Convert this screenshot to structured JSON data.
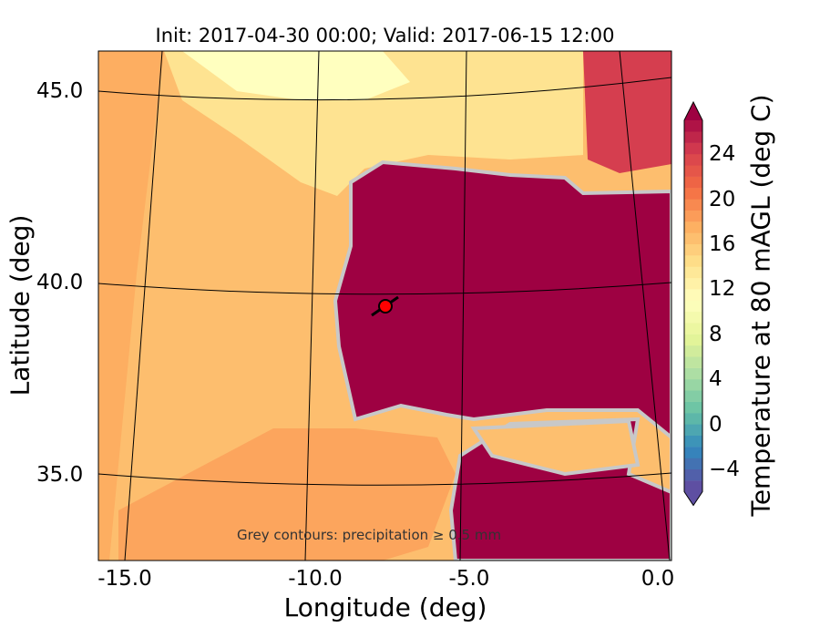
{
  "title": "Init: 2017-04-30 00:00; Valid: 2017-06-15 12:00",
  "xlabel": "Longitude (deg)",
  "ylabel": "Latitude (deg)",
  "xticks": [
    "-15.0",
    "-10.0",
    "-5.0",
    "0.0"
  ],
  "yticks": [
    "45.0",
    "40.0",
    "35.0"
  ],
  "note": "Grey contours: precipitation ≥ 0.5 mm",
  "colorbar": {
    "label": "Temperature at 80 mAGL (deg C)",
    "ticks": [
      "24",
      "20",
      "16",
      "12",
      "8",
      "4",
      "0",
      "−4"
    ],
    "min": -6,
    "max": 27,
    "extend": "both",
    "colormap": "Spectral_r"
  },
  "marker": {
    "lon": -7.7,
    "lat": 39.4,
    "color": "#ff0000"
  },
  "colors": {
    "hot": "#9e0142",
    "warm": "#fdbf6f",
    "sea": "#fee08b"
  }
}
